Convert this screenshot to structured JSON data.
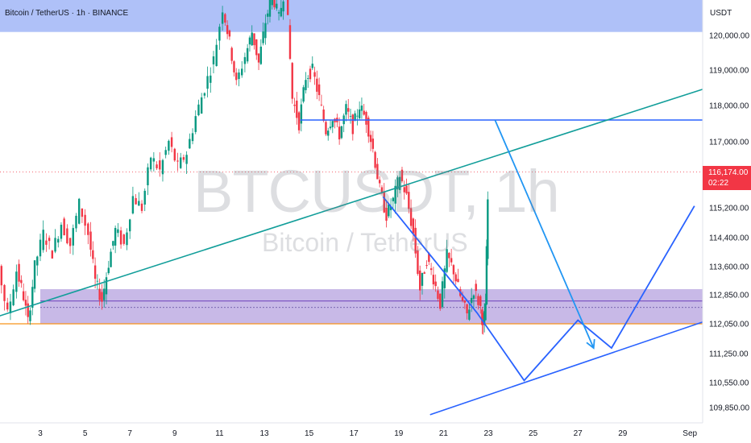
{
  "header": {
    "symbol_title": "Bitcoin / TetherUS · 1h · BINANCE",
    "currency": "USDT"
  },
  "watermark": {
    "symbol": "BTCUSDT, 1h",
    "description": "Bitcoin / TetherUS"
  },
  "last_price": {
    "value": "116,174.00",
    "countdown": "02:22",
    "color": "#f23645"
  },
  "colors": {
    "up": "#089981",
    "down": "#f23645",
    "resistance_zone": "#8da6f5",
    "support_zone": "#9b7fd4",
    "trendline": "#129e9a",
    "projection": "#2962ff",
    "orange_line": "#f7931a"
  },
  "chart_data": {
    "type": "candlestick",
    "y_axis": {
      "tick_labels": [
        "120,000.00",
        "119,000.00",
        "118,000.00",
        "117,000.00",
        "115,200.00",
        "114,400.00",
        "113,600.00",
        "112,850.00",
        "112,050.00",
        "111,250.00",
        "110,550.00",
        "109,850.00"
      ],
      "tick_values": [
        120000,
        119000,
        118000,
        117000,
        115200,
        114400,
        113600,
        112850,
        112050,
        111250,
        110550,
        109850
      ]
    },
    "x_axis": {
      "tick_labels": [
        "3",
        "5",
        "7",
        "9",
        "11",
        "13",
        "15",
        "17",
        "19",
        "21",
        "23",
        "25",
        "27",
        "29",
        "Sep"
      ],
      "tick_days": [
        3,
        5,
        7,
        9,
        11,
        13,
        15,
        17,
        19,
        21,
        23,
        25,
        27,
        29,
        32
      ]
    },
    "price_path": [
      [
        0.0,
        115800
      ],
      [
        0.4,
        115000
      ],
      [
        0.8,
        113800
      ],
      [
        1.2,
        113600
      ],
      [
        1.6,
        112300
      ],
      [
        2.0,
        113500
      ],
      [
        2.3,
        112800
      ],
      [
        2.5,
        112100
      ],
      [
        2.8,
        113600
      ],
      [
        3.2,
        114500
      ],
      [
        3.6,
        114000
      ],
      [
        4.0,
        114800
      ],
      [
        4.4,
        114200
      ],
      [
        4.8,
        115300
      ],
      [
        5.2,
        114500
      ],
      [
        5.5,
        113200
      ],
      [
        5.8,
        112700
      ],
      [
        6.1,
        113700
      ],
      [
        6.4,
        114600
      ],
      [
        6.8,
        114200
      ],
      [
        7.2,
        115500
      ],
      [
        7.6,
        115200
      ],
      [
        8.0,
        116600
      ],
      [
        8.4,
        116200
      ],
      [
        8.8,
        117000
      ],
      [
        9.2,
        116300
      ],
      [
        9.6,
        116700
      ],
      [
        10.0,
        117700
      ],
      [
        10.4,
        118500
      ],
      [
        10.8,
        119300
      ],
      [
        11.2,
        120800
      ],
      [
        11.5,
        119800
      ],
      [
        11.8,
        118600
      ],
      [
        12.2,
        119400
      ],
      [
        12.5,
        120100
      ],
      [
        12.8,
        119200
      ],
      [
        13.1,
        120400
      ],
      [
        13.4,
        121200
      ],
      [
        13.7,
        120500
      ],
      [
        14.0,
        121500
      ],
      [
        14.3,
        118200
      ],
      [
        14.6,
        117500
      ],
      [
        14.9,
        118800
      ],
      [
        15.2,
        119000
      ],
      [
        15.5,
        118200
      ],
      [
        15.8,
        117300
      ],
      [
        16.1,
        117700
      ],
      [
        16.4,
        117200
      ],
      [
        16.7,
        117900
      ],
      [
        17.0,
        117400
      ],
      [
        17.3,
        118000
      ],
      [
        17.6,
        117600
      ],
      [
        17.9,
        116800
      ],
      [
        18.2,
        115700
      ],
      [
        18.5,
        115000
      ],
      [
        18.8,
        115400
      ],
      [
        19.1,
        116100
      ],
      [
        19.4,
        115500
      ],
      [
        19.7,
        114500
      ],
      [
        20.0,
        113000
      ],
      [
        20.3,
        113800
      ],
      [
        20.6,
        113300
      ],
      [
        20.9,
        112600
      ],
      [
        21.2,
        113900
      ],
      [
        21.5,
        113500
      ],
      [
        21.8,
        112800
      ],
      [
        22.1,
        112300
      ],
      [
        22.4,
        113000
      ],
      [
        22.7,
        112500
      ],
      [
        22.8,
        111900
      ],
      [
        22.9,
        112600
      ],
      [
        23.0,
        115400
      ],
      [
        23.2,
        116174
      ]
    ],
    "zones": [
      {
        "name": "resistance-zone",
        "from": 120100,
        "to": 121500
      },
      {
        "name": "support-zone",
        "from": 112050,
        "to": 113000
      }
    ],
    "zone_lines": [
      112680,
      112500
    ],
    "orange_line": 112050,
    "last_price_line": 116174,
    "horizontal_level": {
      "price": 117600,
      "from_day": 14.6
    },
    "trendlines": [
      {
        "name": "ascending-trendline",
        "points": [
          [
            -1.2,
            111800
          ],
          [
            34.0,
            118750
          ]
        ]
      },
      {
        "name": "lower-channel-line",
        "points": [
          [
            20.4,
            109650
          ],
          [
            34.0,
            112400
          ]
        ]
      }
    ],
    "projection_paths": [
      {
        "name": "projection-drop-path",
        "points": [
          [
            18.3,
            115500
          ],
          [
            22.5,
            112350
          ],
          [
            24.6,
            110600
          ],
          [
            27.0,
            112150
          ],
          [
            28.5,
            111400
          ],
          [
            32.2,
            115250
          ]
        ]
      },
      {
        "name": "projection-arrow-path",
        "points": [
          [
            23.3,
            117600
          ],
          [
            27.7,
            111400
          ]
        ]
      }
    ]
  }
}
